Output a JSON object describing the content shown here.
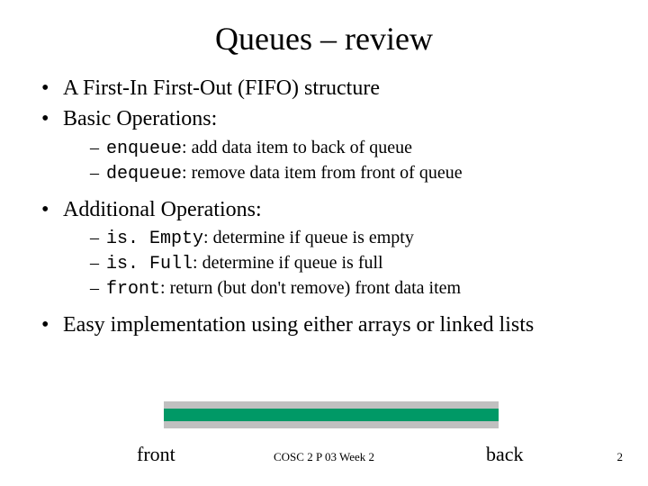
{
  "title": "Queues – review",
  "bullets": {
    "b1": "A First-In First-Out (FIFO) structure",
    "b2": "Basic Operations:",
    "b2_sub": {
      "enqueue_code": "enqueue",
      "enqueue_text": ": add data item to back of queue",
      "dequeue_code": "dequeue",
      "dequeue_text": ": remove data item from front of queue"
    },
    "b3": "Additional Operations:",
    "b3_sub": {
      "isempty_code": "is. Empty",
      "isempty_text": ": determine if queue is empty",
      "isfull_code": "is. Full",
      "isfull_text": ": determine if queue is full",
      "front_code": "front",
      "front_text": ": return (but don't remove) front data item"
    },
    "b4": "Easy implementation using either arrays or linked lists"
  },
  "diagram": {
    "front_label": "front",
    "back_label": "back",
    "fill_color": "#009966",
    "border_color": "#c0c0c0"
  },
  "footer": {
    "course": "COSC 2 P 03 Week 2",
    "page": "2"
  }
}
